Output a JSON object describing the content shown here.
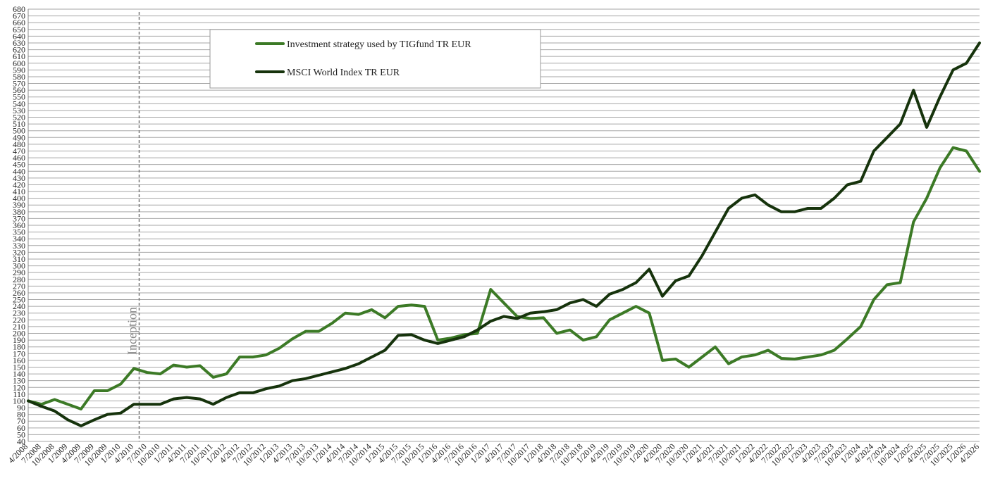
{
  "chart_data": {
    "type": "line",
    "categories": [
      "4/2008",
      "7/2008",
      "10/2008",
      "1/2009",
      "4/2009",
      "7/2009",
      "10/2009",
      "1/2010",
      "4/2010",
      "7/2010",
      "10/2010",
      "1/2011",
      "4/2011",
      "7/2011",
      "10/2011",
      "1/2012",
      "4/2012",
      "7/2012",
      "10/2012",
      "1/2013",
      "4/2013",
      "7/2013",
      "10/2013",
      "1/2014",
      "4/2014",
      "7/2014",
      "10/2014",
      "1/2015",
      "4/2015",
      "7/2015",
      "10/2015",
      "1/2016",
      "4/2016",
      "7/2016",
      "10/2016",
      "1/2017",
      "4/2017",
      "7/2017",
      "10/2017",
      "1/2018",
      "4/2018",
      "7/2018",
      "10/2018",
      "1/2019",
      "4/2019",
      "7/2019",
      "10/2019",
      "1/2020",
      "4/2020",
      "7/2020",
      "10/2020",
      "1/2021",
      "4/2021",
      "7/2021",
      "10/2021",
      "1/2022",
      "4/2022",
      "7/2022",
      "10/2022",
      "1/2023",
      "4/2023",
      "7/2023",
      "10/2023",
      "1/2024",
      "4/2024",
      "7/2024",
      "10/2024",
      "1/2025",
      "4/2025",
      "7/2025",
      "10/2025",
      "1/2026",
      "4/2026"
    ],
    "series": [
      {
        "name": "Investment strategy used by TIGfund TR EUR",
        "color": "#3c7a26",
        "values": [
          100,
          95,
          102,
          95,
          88,
          115,
          115,
          125,
          148,
          142,
          140,
          153,
          150,
          152,
          135,
          140,
          165,
          165,
          168,
          178,
          192,
          203,
          203,
          215,
          230,
          228,
          235,
          223,
          240,
          242,
          240,
          190,
          193,
          198,
          200,
          265,
          245,
          225,
          222,
          223,
          200,
          205,
          190,
          195,
          220,
          230,
          240,
          230,
          160,
          162,
          150,
          165,
          180,
          155,
          165,
          168,
          175,
          163,
          162,
          165,
          168,
          175,
          192,
          210,
          250,
          272,
          275,
          365,
          400,
          445,
          475,
          470,
          440
        ]
      },
      {
        "name": "MSCI World Index TR EUR",
        "color": "#16330c",
        "values": [
          100,
          92,
          85,
          72,
          63,
          72,
          80,
          82,
          95,
          95,
          95,
          103,
          105,
          103,
          95,
          105,
          112,
          112,
          118,
          122,
          130,
          133,
          138,
          143,
          148,
          155,
          165,
          175,
          197,
          198,
          190,
          185,
          190,
          195,
          205,
          218,
          225,
          222,
          230,
          232,
          235,
          245,
          250,
          240,
          258,
          265,
          275,
          295,
          255,
          278,
          285,
          315,
          350,
          385,
          400,
          405,
          390,
          380,
          380,
          385,
          385,
          400,
          420,
          425,
          470,
          490,
          510,
          560,
          505,
          550,
          590,
          600,
          630
        ]
      }
    ],
    "annotation": {
      "text": "Inception",
      "x": 8.4
    },
    "ylim": [
      40,
      680
    ],
    "yticks": [
      40,
      50,
      60,
      70,
      80,
      90,
      100,
      110,
      120,
      130,
      140,
      150,
      160,
      170,
      180,
      190,
      200,
      210,
      220,
      230,
      240,
      250,
      260,
      270,
      280,
      290,
      300,
      310,
      320,
      330,
      340,
      350,
      360,
      370,
      380,
      390,
      400,
      410,
      420,
      430,
      440,
      450,
      460,
      470,
      480,
      490,
      500,
      510,
      520,
      530,
      540,
      550,
      560,
      570,
      580,
      590,
      600,
      610,
      620,
      630,
      640,
      650,
      660,
      670,
      680
    ],
    "grid": true
  }
}
